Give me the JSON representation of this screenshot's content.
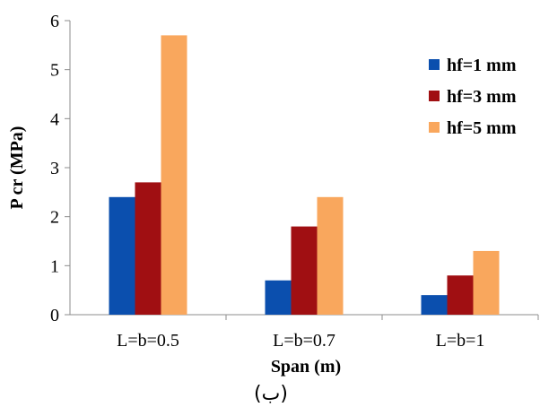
{
  "chart_data": {
    "type": "bar",
    "title": "",
    "xlabel": "Span (m)",
    "ylabel": "P cr (MPa)",
    "ylim": [
      0,
      6
    ],
    "yticks": [
      0,
      1,
      2,
      3,
      4,
      5,
      6
    ],
    "categories": [
      "L=b=0.5",
      "L=b=0.7",
      "L=b=1"
    ],
    "series": [
      {
        "name": "hf=1 mm",
        "values": [
          2.4,
          0.7,
          0.4
        ],
        "color": "#0b4fae"
      },
      {
        "name": "hf=3 mm",
        "values": [
          2.7,
          1.8,
          0.8
        ],
        "color": "#a00f12"
      },
      {
        "name": "hf=5 mm",
        "values": [
          5.7,
          2.4,
          1.3
        ],
        "color": "#f9a75d"
      }
    ],
    "legend_position": "right-top",
    "grid": false
  },
  "caption": "(ب)"
}
